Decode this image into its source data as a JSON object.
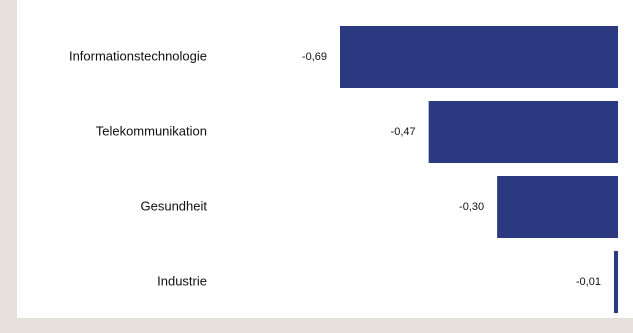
{
  "colors": {
    "bar": "#2b3a80",
    "background": "#e5e0da",
    "panel": "#ffffff"
  },
  "chart_data": {
    "type": "bar",
    "orientation": "horizontal",
    "categories": [
      "Informationstechnologie",
      "Telekommunikation",
      "Gesundheit",
      "Industrie"
    ],
    "values": [
      -0.69,
      -0.47,
      -0.3,
      -0.01
    ],
    "value_labels": [
      "-0,69",
      "-0,47",
      "-0,30",
      "-0,01"
    ],
    "title": "",
    "xlabel": "",
    "ylabel": "",
    "xlim": [
      -0.69,
      0
    ],
    "grid": false,
    "legend": "none"
  }
}
